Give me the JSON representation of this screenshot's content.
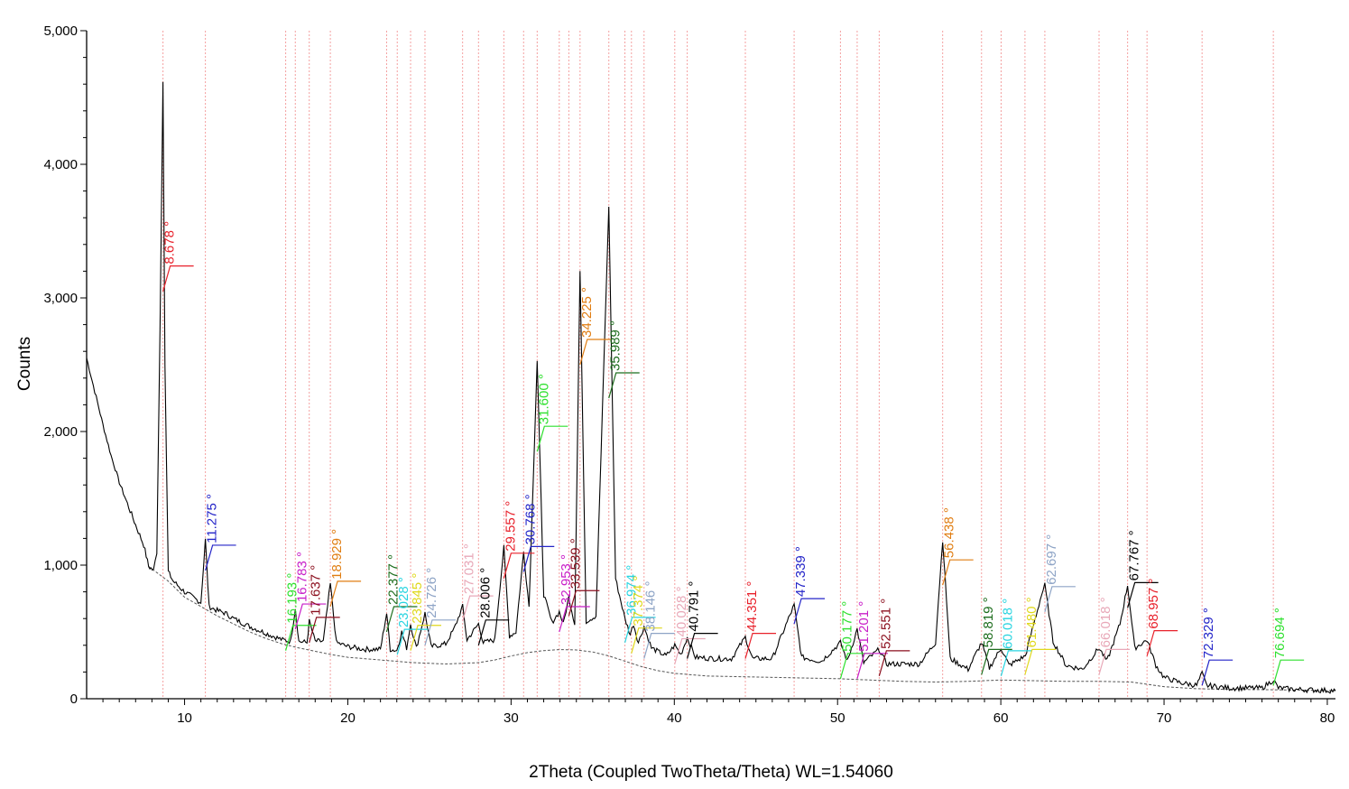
{
  "chart_data": {
    "type": "line",
    "title": "",
    "xlabel": "2Theta (Coupled TwoTheta/Theta) WL=1.54060",
    "ylabel": "Counts",
    "xlim": [
      4,
      80.5
    ],
    "ylim": [
      0,
      5000
    ],
    "x_ticks": [
      10,
      20,
      30,
      40,
      50,
      60,
      70,
      80
    ],
    "y_ticks": [
      {
        "value": 0,
        "label": "0"
      },
      {
        "value": 1000,
        "label": "1,000"
      },
      {
        "value": 2000,
        "label": "2,000"
      },
      {
        "value": 3000,
        "label": "3,000"
      },
      {
        "value": 4000,
        "label": "4,000"
      },
      {
        "value": 5000,
        "label": "5,000"
      }
    ],
    "grid": false,
    "reference_line_color": "#f4a0a0",
    "pattern": {
      "name": "Counts",
      "color": "#000000",
      "points": [
        [
          4,
          2550
        ],
        [
          4.5,
          2300
        ],
        [
          5,
          2050
        ],
        [
          5.5,
          1820
        ],
        [
          6,
          1620
        ],
        [
          6.5,
          1460
        ],
        [
          7,
          1300
        ],
        [
          7.5,
          1150
        ],
        [
          7.8,
          990
        ],
        [
          8.1,
          960
        ],
        [
          8.3,
          1100
        ],
        [
          8.5,
          2800
        ],
        [
          8.678,
          4630
        ],
        [
          8.8,
          2500
        ],
        [
          9,
          950
        ],
        [
          9.3,
          880
        ],
        [
          10,
          800
        ],
        [
          10.5,
          760
        ],
        [
          11,
          720
        ],
        [
          11.275,
          1190
        ],
        [
          11.5,
          690
        ],
        [
          12,
          660
        ],
        [
          12.5,
          640
        ],
        [
          13,
          600
        ],
        [
          14,
          540
        ],
        [
          15,
          490
        ],
        [
          16,
          440
        ],
        [
          16.5,
          430
        ],
        [
          16.783,
          680
        ],
        [
          17.0,
          430
        ],
        [
          17.5,
          420
        ],
        [
          17.637,
          580
        ],
        [
          18.0,
          430
        ],
        [
          18.5,
          430
        ],
        [
          18.929,
          860
        ],
        [
          19.3,
          420
        ],
        [
          20,
          390
        ],
        [
          21,
          370
        ],
        [
          22,
          370
        ],
        [
          22.377,
          640
        ],
        [
          22.6,
          370
        ],
        [
          23,
          360
        ],
        [
          23.3,
          500
        ],
        [
          23.6,
          380
        ],
        [
          23.845,
          560
        ],
        [
          24.2,
          380
        ],
        [
          24.726,
          640
        ],
        [
          25.1,
          390
        ],
        [
          26,
          410
        ],
        [
          26.5,
          520
        ],
        [
          27.031,
          690
        ],
        [
          27.3,
          440
        ],
        [
          28.006,
          560
        ],
        [
          28.3,
          420
        ],
        [
          29,
          440
        ],
        [
          29.557,
          1130
        ],
        [
          29.9,
          470
        ],
        [
          30.3,
          500
        ],
        [
          30.768,
          1100
        ],
        [
          31.1,
          690
        ],
        [
          31.6,
          2530
        ],
        [
          32,
          780
        ],
        [
          32.5,
          570
        ],
        [
          32.953,
          650
        ],
        [
          33.2,
          560
        ],
        [
          33.539,
          760
        ],
        [
          33.9,
          560
        ],
        [
          34.225,
          3200
        ],
        [
          34.6,
          580
        ],
        [
          35.2,
          620
        ],
        [
          35.989,
          3690
        ],
        [
          36.4,
          900
        ],
        [
          36.974,
          600
        ],
        [
          37.3,
          480
        ],
        [
          37.5,
          560
        ],
        [
          37.8,
          420
        ],
        [
          38.146,
          540
        ],
        [
          38.6,
          380
        ],
        [
          39.5,
          320
        ],
        [
          40.028,
          400
        ],
        [
          40.4,
          330
        ],
        [
          40.791,
          460
        ],
        [
          41.3,
          310
        ],
        [
          42.5,
          300
        ],
        [
          43.5,
          300
        ],
        [
          44.351,
          460
        ],
        [
          44.8,
          300
        ],
        [
          46,
          300
        ],
        [
          47.0,
          600
        ],
        [
          47.339,
          700
        ],
        [
          47.8,
          310
        ],
        [
          49,
          280
        ],
        [
          50.177,
          420
        ],
        [
          50.6,
          280
        ],
        [
          51.201,
          520
        ],
        [
          51.6,
          270
        ],
        [
          52.551,
          370
        ],
        [
          53,
          260
        ],
        [
          55,
          260
        ],
        [
          56,
          420
        ],
        [
          56.438,
          1190
        ],
        [
          56.9,
          300
        ],
        [
          58,
          220
        ],
        [
          58.819,
          420
        ],
        [
          59.3,
          230
        ],
        [
          60.018,
          380
        ],
        [
          60.5,
          250
        ],
        [
          61.5,
          320
        ],
        [
          62.5,
          780
        ],
        [
          62.697,
          850
        ],
        [
          63.2,
          430
        ],
        [
          64,
          250
        ],
        [
          65,
          220
        ],
        [
          66.018,
          380
        ],
        [
          66.5,
          280
        ],
        [
          67.3,
          560
        ],
        [
          67.767,
          850
        ],
        [
          68.2,
          380
        ],
        [
          68.957,
          440
        ],
        [
          69.5,
          250
        ],
        [
          70,
          160
        ],
        [
          71,
          120
        ],
        [
          72,
          100
        ],
        [
          72.329,
          190
        ],
        [
          72.6,
          100
        ],
        [
          74,
          80
        ],
        [
          76,
          80
        ],
        [
          76.694,
          140
        ],
        [
          77,
          80
        ],
        [
          78,
          70
        ],
        [
          80.5,
          60
        ]
      ]
    },
    "background": {
      "color": "#000000",
      "points": [
        [
          7.8,
          990
        ],
        [
          9,
          880
        ],
        [
          10,
          760
        ],
        [
          11,
          690
        ],
        [
          12,
          620
        ],
        [
          13,
          560
        ],
        [
          14,
          500
        ],
        [
          15,
          450
        ],
        [
          16,
          410
        ],
        [
          17,
          380
        ],
        [
          18,
          355
        ],
        [
          19,
          330
        ],
        [
          20,
          310
        ],
        [
          22,
          290
        ],
        [
          24,
          270
        ],
        [
          26,
          260
        ],
        [
          28,
          270
        ],
        [
          29,
          290
        ],
        [
          30,
          320
        ],
        [
          31,
          345
        ],
        [
          32,
          360
        ],
        [
          33,
          368
        ],
        [
          34,
          365
        ],
        [
          35,
          350
        ],
        [
          36,
          320
        ],
        [
          37,
          280
        ],
        [
          38,
          240
        ],
        [
          39,
          210
        ],
        [
          40,
          190
        ],
        [
          42,
          170
        ],
        [
          44,
          165
        ],
        [
          46,
          160
        ],
        [
          48,
          155
        ],
        [
          50,
          150
        ],
        [
          52,
          140
        ],
        [
          54,
          130
        ],
        [
          56,
          125
        ],
        [
          58,
          130
        ],
        [
          60,
          140
        ],
        [
          62,
          135
        ],
        [
          64,
          130
        ],
        [
          66,
          130
        ],
        [
          68,
          125
        ],
        [
          70,
          90
        ],
        [
          72,
          75
        ],
        [
          74,
          70
        ],
        [
          76,
          68
        ],
        [
          78,
          65
        ],
        [
          80.5,
          60
        ]
      ]
    },
    "peaks": [
      {
        "label": "8.678 °",
        "x": 8.678,
        "y": 3050,
        "color": "#e8212b"
      },
      {
        "label": "11.275 °",
        "x": 11.275,
        "y": 960,
        "color": "#2424c8"
      },
      {
        "label": "16.193 °",
        "x": 16.193,
        "y": 360,
        "color": "#2ee02e"
      },
      {
        "label": "16.783 °",
        "x": 16.783,
        "y": 520,
        "color": "#c81ec8"
      },
      {
        "label": "17.637 °",
        "x": 17.637,
        "y": 420,
        "color": "#8b0f1e"
      },
      {
        "label": "18.929 °",
        "x": 18.929,
        "y": 690,
        "color": "#e07d12"
      },
      {
        "label": "22.377 °",
        "x": 22.377,
        "y": 500,
        "color": "#1d6d1d"
      },
      {
        "label": "23.028 °",
        "x": 23.028,
        "y": 330,
        "color": "#28d4e0"
      },
      {
        "label": "23.845 °",
        "x": 23.845,
        "y": 360,
        "color": "#e0d81c"
      },
      {
        "label": "24.726 °",
        "x": 24.726,
        "y": 400,
        "color": "#8ea4c6"
      },
      {
        "label": "27.031 °",
        "x": 27.031,
        "y": 580,
        "color": "#e8a8b8"
      },
      {
        "label": "28.006 °",
        "x": 28.006,
        "y": 400,
        "color": "#000000"
      },
      {
        "label": "29.557 °",
        "x": 29.557,
        "y": 900,
        "color": "#e8212b"
      },
      {
        "label": "30.768 °",
        "x": 30.768,
        "y": 950,
        "color": "#2424c8"
      },
      {
        "label": "31.600 °",
        "x": 31.6,
        "y": 1850,
        "color": "#2ee02e"
      },
      {
        "label": "32.953 °",
        "x": 32.953,
        "y": 500,
        "color": "#c81ec8"
      },
      {
        "label": "33.539 °",
        "x": 33.539,
        "y": 620,
        "color": "#8b0f1e"
      },
      {
        "label": "34.225 °",
        "x": 34.225,
        "y": 2500,
        "color": "#e07d12"
      },
      {
        "label": "35.989 °",
        "x": 35.989,
        "y": 2250,
        "color": "#1d6d1d"
      },
      {
        "label": "36.974 °",
        "x": 36.974,
        "y": 420,
        "color": "#28d4e0"
      },
      {
        "label": "37.374 °",
        "x": 37.374,
        "y": 340,
        "color": "#e0d81c"
      },
      {
        "label": "38.146 °",
        "x": 38.146,
        "y": 300,
        "color": "#8ea4c6"
      },
      {
        "label": "40.028 °",
        "x": 40.028,
        "y": 260,
        "color": "#e8a8b8"
      },
      {
        "label": "40.791 °",
        "x": 40.791,
        "y": 300,
        "color": "#000000"
      },
      {
        "label": "44.351 °",
        "x": 44.351,
        "y": 300,
        "color": "#e8212b"
      },
      {
        "label": "47.339 °",
        "x": 47.339,
        "y": 560,
        "color": "#2424c8"
      },
      {
        "label": "50.177 °",
        "x": 50.177,
        "y": 150,
        "color": "#2ee02e"
      },
      {
        "label": "51.201 °",
        "x": 51.201,
        "y": 150,
        "color": "#c81ec8"
      },
      {
        "label": "52.551 °",
        "x": 52.551,
        "y": 170,
        "color": "#8b0f1e"
      },
      {
        "label": "56.438 °",
        "x": 56.438,
        "y": 850,
        "color": "#e07d12"
      },
      {
        "label": "58.819 °",
        "x": 58.819,
        "y": 180,
        "color": "#1d6d1d"
      },
      {
        "label": "60.018 °",
        "x": 60.018,
        "y": 170,
        "color": "#28d4e0"
      },
      {
        "label": "61.480 °",
        "x": 61.48,
        "y": 180,
        "color": "#e0d81c"
      },
      {
        "label": "62.697 °",
        "x": 62.697,
        "y": 650,
        "color": "#8ea4c6"
      },
      {
        "label": "66.018 °",
        "x": 66.018,
        "y": 180,
        "color": "#e8a8b8"
      },
      {
        "label": "67.767 °",
        "x": 67.767,
        "y": 680,
        "color": "#000000"
      },
      {
        "label": "68.957 °",
        "x": 68.957,
        "y": 320,
        "color": "#e8212b"
      },
      {
        "label": "72.329 °",
        "x": 72.329,
        "y": 100,
        "color": "#2424c8"
      },
      {
        "label": "76.694 °",
        "x": 76.694,
        "y": 100,
        "color": "#2ee02e"
      }
    ],
    "reference_lines_x": [
      8.678,
      11.275,
      16.193,
      16.783,
      17.637,
      18.929,
      22.377,
      23.028,
      23.845,
      24.726,
      27.031,
      28.006,
      29.557,
      30.768,
      31.6,
      32.953,
      33.539,
      34.225,
      35.989,
      36.974,
      37.374,
      38.146,
      40.028,
      40.791,
      44.351,
      47.339,
      50.177,
      51.201,
      52.551,
      56.438,
      58.819,
      60.018,
      61.48,
      62.697,
      66.018,
      67.767,
      68.957,
      72.329,
      76.694
    ]
  }
}
